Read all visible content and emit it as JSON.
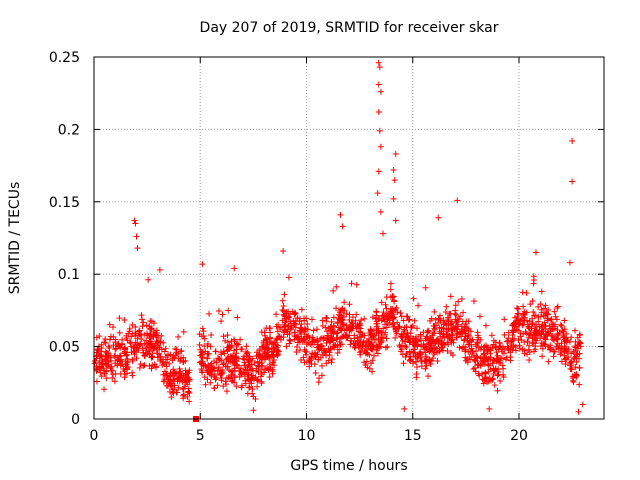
{
  "chart_data": {
    "type": "scatter",
    "title": "Day 207 of 2019, SRMTID for receiver skar",
    "xlabel": "GPS time / hours",
    "ylabel": "SRMTID / TECUs",
    "xlim": [
      0,
      24
    ],
    "ylim": [
      0,
      0.25
    ],
    "x_ticks": [
      0,
      5,
      10,
      15,
      20
    ],
    "x_tick_labels": [
      "0",
      "5",
      "10",
      "15",
      "20"
    ],
    "y_ticks": [
      0,
      0.05,
      0.1,
      0.15,
      0.2,
      0.25
    ],
    "y_tick_labels": [
      "0",
      "0.05",
      "0.1",
      "0.15",
      "0.2",
      "0.25"
    ],
    "grid": true,
    "marker": "plus",
    "marker_color": "#ff0000",
    "trend": {
      "x": [
        0,
        0.5,
        1,
        1.5,
        2,
        2.5,
        3,
        3.5,
        4,
        4.5,
        5,
        5.5,
        6,
        6.5,
        7,
        7.5,
        8,
        8.5,
        9,
        9.5,
        10,
        10.5,
        11,
        11.5,
        12,
        12.5,
        13,
        13.5,
        14,
        14.5,
        15,
        15.5,
        16,
        16.5,
        17,
        17.5,
        18,
        18.5,
        19,
        19.5,
        20,
        20.5,
        21,
        21.5,
        22,
        22.5,
        23
      ],
      "y": [
        0.045,
        0.042,
        0.044,
        0.04,
        0.052,
        0.055,
        0.048,
        0.035,
        0.028,
        0.026,
        0.045,
        0.04,
        0.037,
        0.042,
        0.036,
        0.03,
        0.045,
        0.05,
        0.068,
        0.06,
        0.055,
        0.045,
        0.052,
        0.06,
        0.065,
        0.055,
        0.048,
        0.06,
        0.075,
        0.055,
        0.05,
        0.048,
        0.055,
        0.06,
        0.065,
        0.055,
        0.045,
        0.04,
        0.038,
        0.05,
        0.065,
        0.06,
        0.065,
        0.058,
        0.055,
        0.04,
        0.045
      ]
    },
    "outliers": [
      {
        "x": 1.9,
        "y": 0.137
      },
      {
        "x": 1.95,
        "y": 0.135
      },
      {
        "x": 2.0,
        "y": 0.126
      },
      {
        "x": 2.05,
        "y": 0.118
      },
      {
        "x": 13.4,
        "y": 0.246
      },
      {
        "x": 13.45,
        "y": 0.243
      },
      {
        "x": 13.4,
        "y": 0.231
      },
      {
        "x": 13.5,
        "y": 0.226
      },
      {
        "x": 13.4,
        "y": 0.212
      },
      {
        "x": 13.45,
        "y": 0.199
      },
      {
        "x": 13.5,
        "y": 0.188
      },
      {
        "x": 13.4,
        "y": 0.171
      },
      {
        "x": 13.35,
        "y": 0.156
      },
      {
        "x": 13.5,
        "y": 0.143
      },
      {
        "x": 13.6,
        "y": 0.128
      },
      {
        "x": 14.2,
        "y": 0.183
      },
      {
        "x": 14.1,
        "y": 0.172
      },
      {
        "x": 14.15,
        "y": 0.165
      },
      {
        "x": 14.1,
        "y": 0.152
      },
      {
        "x": 14.2,
        "y": 0.137
      },
      {
        "x": 11.6,
        "y": 0.141
      },
      {
        "x": 11.7,
        "y": 0.133
      },
      {
        "x": 16.2,
        "y": 0.139
      },
      {
        "x": 17.1,
        "y": 0.151
      },
      {
        "x": 22.5,
        "y": 0.192
      },
      {
        "x": 22.5,
        "y": 0.164
      },
      {
        "x": 8.9,
        "y": 0.116
      },
      {
        "x": 3.1,
        "y": 0.103
      },
      {
        "x": 5.1,
        "y": 0.107
      },
      {
        "x": 6.6,
        "y": 0.104
      },
      {
        "x": 20.8,
        "y": 0.115
      },
      {
        "x": 22.4,
        "y": 0.108
      },
      {
        "x": 14.6,
        "y": 0.007
      },
      {
        "x": 18.6,
        "y": 0.007
      },
      {
        "x": 22.8,
        "y": 0.005
      },
      {
        "x": 23.0,
        "y": 0.01
      },
      {
        "x": 7.5,
        "y": 0.006
      }
    ],
    "special_markers": [
      {
        "x": 4.8,
        "y": 0.0,
        "marker": "square"
      }
    ]
  }
}
